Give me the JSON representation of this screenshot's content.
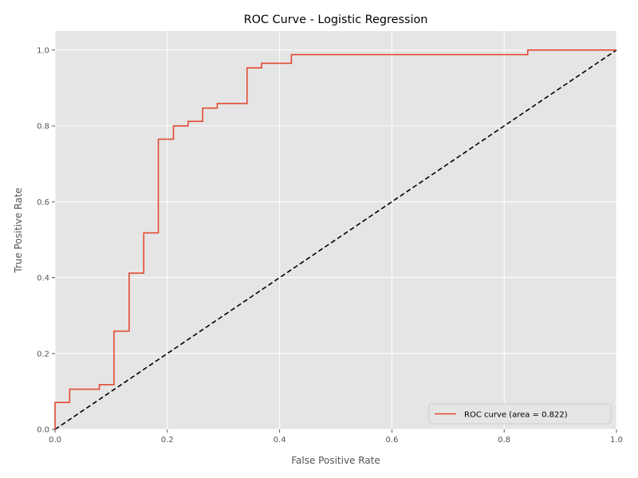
{
  "chart_data": {
    "type": "line",
    "title": "ROC Curve - Logistic Regression",
    "xlabel": "False Positive Rate",
    "ylabel": "True Positive Rate",
    "xlim": [
      0.0,
      1.0
    ],
    "ylim": [
      0.0,
      1.05
    ],
    "xticks": [
      "0.0",
      "0.2",
      "0.4",
      "0.6",
      "0.8",
      "1.0"
    ],
    "yticks": [
      "0.0",
      "0.2",
      "0.4",
      "0.6",
      "0.8",
      "1.0"
    ],
    "grid": true,
    "legend_position": "lower right",
    "colors": {
      "plot_background": "#e5e5e5",
      "grid": "#ffffff",
      "roc": "#e24a33",
      "diagonal": "#000000"
    },
    "series": [
      {
        "name": "ROC curve (area = 0.822)",
        "style": "step",
        "x": [
          0.0,
          0.0,
          0.026,
          0.026,
          0.079,
          0.079,
          0.105,
          0.105,
          0.132,
          0.132,
          0.158,
          0.158,
          0.184,
          0.184,
          0.211,
          0.211,
          0.237,
          0.237,
          0.263,
          0.263,
          0.289,
          0.289,
          0.342,
          0.342,
          0.368,
          0.368,
          0.421,
          0.421,
          0.842,
          0.842,
          1.0
        ],
        "y": [
          0.0,
          0.071,
          0.071,
          0.106,
          0.106,
          0.118,
          0.118,
          0.259,
          0.259,
          0.412,
          0.412,
          0.518,
          0.518,
          0.765,
          0.765,
          0.8,
          0.8,
          0.812,
          0.812,
          0.847,
          0.847,
          0.859,
          0.859,
          0.953,
          0.953,
          0.965,
          0.965,
          0.988,
          0.988,
          1.0,
          1.0
        ]
      },
      {
        "style": "dashed",
        "x": [
          0.0,
          1.0
        ],
        "y": [
          0.0,
          1.0
        ]
      }
    ]
  }
}
